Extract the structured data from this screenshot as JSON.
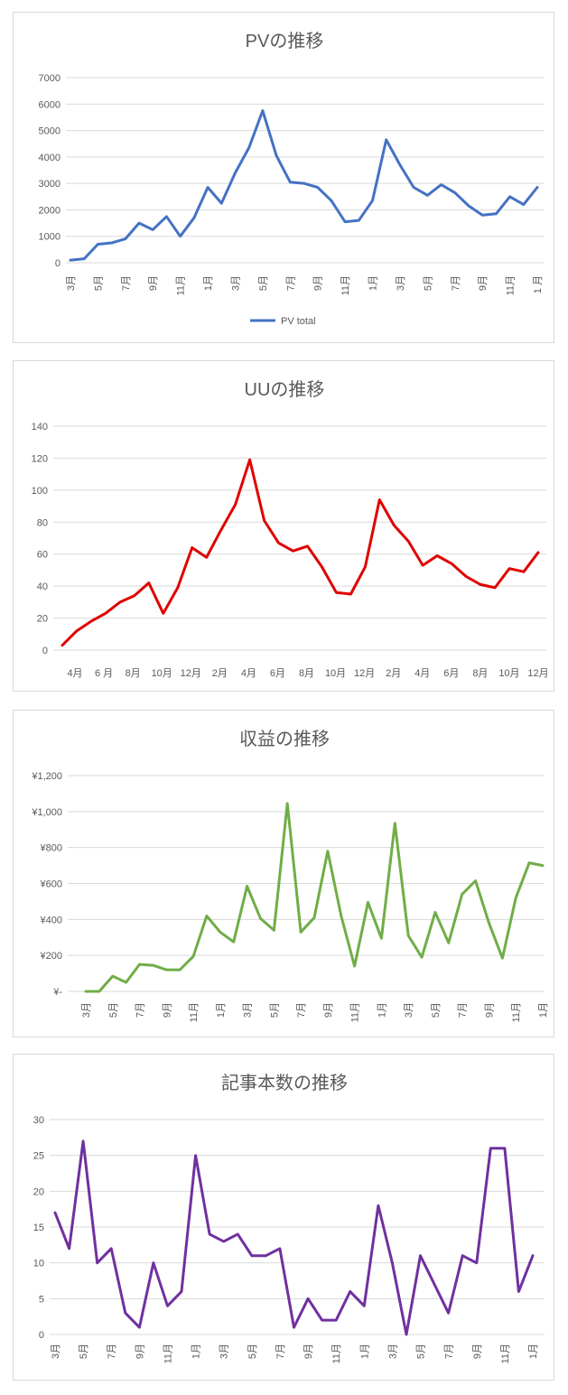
{
  "chart_data": [
    {
      "type": "line",
      "title": "PVの推移",
      "color": "#4472c4",
      "ylim": [
        0,
        7000
      ],
      "yticks": [
        "0",
        "1000",
        "2000",
        "3000",
        "4000",
        "5000",
        "6000",
        "7000"
      ],
      "x_labels_rotated": true,
      "tick_labels": [
        "3月",
        "5月",
        "7月",
        "9月",
        "11月",
        "1月",
        "3月",
        "5月",
        "7月",
        "9月",
        "11月",
        "1月",
        "3月",
        "5月",
        "7月",
        "9月",
        "11月",
        "1 月"
      ],
      "series": [
        {
          "name": "PV total",
          "values": [
            100,
            150,
            700,
            750,
            900,
            1500,
            1250,
            1750,
            1000,
            1700,
            2850,
            2250,
            3400,
            4350,
            5750,
            4050,
            3050,
            3000,
            2850,
            2350,
            1550,
            1600,
            2350,
            4650,
            3700,
            2850,
            2550,
            2950,
            2650,
            2150,
            1800,
            1850,
            2500,
            2200,
            2850
          ]
        }
      ],
      "legend": "bottom"
    },
    {
      "type": "line",
      "title": "UUの推移",
      "color": "#e00000",
      "ylim": [
        0,
        140
      ],
      "yticks": [
        "0",
        "20",
        "40",
        "60",
        "80",
        "100",
        "120",
        "140"
      ],
      "x_labels_rotated": false,
      "tick_labels": [
        "4月",
        "6 月",
        "8月",
        "10月",
        "12月",
        "2月",
        "4月",
        "6月",
        "8月",
        "10月",
        "12月",
        "2月",
        "4月",
        "6月",
        "8月",
        "10月",
        "12月"
      ],
      "series": [
        {
          "values": [
            3,
            12,
            18,
            23,
            30,
            34,
            42,
            23,
            39,
            64,
            58,
            75,
            91,
            119,
            81,
            67,
            62,
            65,
            52,
            36,
            35,
            52,
            94,
            78,
            68,
            53,
            59,
            54,
            46,
            41,
            39,
            51,
            49,
            61
          ]
        }
      ]
    },
    {
      "type": "line",
      "title": "収益の推移",
      "color": "#70ad47",
      "ylim": [
        0,
        1200
      ],
      "yticks": [
        "¥-",
        "¥200",
        "¥400",
        "¥600",
        "¥800",
        "¥1,000",
        "¥1,200"
      ],
      "x_labels_rotated": true,
      "tick_labels": [
        "3月",
        "5月",
        "7月",
        "9月",
        "11月",
        "1月",
        "3月",
        "5月",
        "7月",
        "9月",
        "11月",
        "1月",
        "3月",
        "5月",
        "7月",
        "9月",
        "11月",
        "1月"
      ],
      "series": [
        {
          "values": [
            0,
            0,
            85,
            50,
            150,
            145,
            120,
            120,
            195,
            420,
            330,
            275,
            585,
            405,
            340,
            1045,
            330,
            410,
            780,
            420,
            140,
            495,
            295,
            935,
            310,
            190,
            440,
            270,
            540,
            615,
            380,
            185,
            520,
            715,
            700
          ]
        }
      ]
    },
    {
      "type": "line",
      "title": "記事本数の推移",
      "color": "#7030a0",
      "ylim": [
        0,
        30
      ],
      "yticks": [
        "0",
        "5",
        "10",
        "15",
        "20",
        "25",
        "30"
      ],
      "x_labels_rotated": true,
      "tick_labels": [
        "3月",
        "5月",
        "7月",
        "9月",
        "11月",
        "1月",
        "3月",
        "5月",
        "7月",
        "9月",
        "11月",
        "1月",
        "3月",
        "5月",
        "7月",
        "9月",
        "11月",
        "1月"
      ],
      "series": [
        {
          "values": [
            17,
            12,
            27,
            10,
            12,
            3,
            1,
            10,
            4,
            6,
            25,
            14,
            13,
            14,
            11,
            11,
            12,
            1,
            5,
            2,
            2,
            6,
            4,
            18,
            10,
            0,
            11,
            7,
            3,
            11,
            10,
            26,
            26,
            6,
            11
          ]
        }
      ]
    }
  ]
}
